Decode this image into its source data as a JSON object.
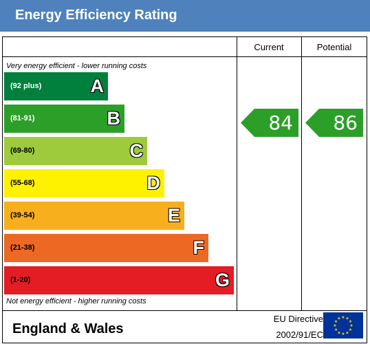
{
  "header": {
    "title": "Energy Efficiency Rating"
  },
  "columns": {
    "current": "Current",
    "potential": "Potential"
  },
  "captions": {
    "top": "Very energy efficient - lower running costs",
    "bottom": "Not energy efficient - higher running costs"
  },
  "chart_data": {
    "type": "bar",
    "title": "Energy Efficiency Rating",
    "bands": [
      {
        "letter": "A",
        "range": "(92 plus)",
        "color": "#007f3d",
        "range_color": "#ffffff"
      },
      {
        "letter": "B",
        "range": "(81-91)",
        "color": "#2c9f29",
        "range_color": "#ffffff"
      },
      {
        "letter": "C",
        "range": "(69-80)",
        "color": "#9dcb3c",
        "range_color": "#000000"
      },
      {
        "letter": "D",
        "range": "(55-68)",
        "color": "#fff200",
        "range_color": "#000000"
      },
      {
        "letter": "E",
        "range": "(39-54)",
        "color": "#f7af1d",
        "range_color": "#000000"
      },
      {
        "letter": "F",
        "range": "(21-38)",
        "color": "#ed6823",
        "range_color": "#000000"
      },
      {
        "letter": "G",
        "range": "(1-20)",
        "color": "#e31d23",
        "range_color": "#000000"
      }
    ],
    "current": {
      "value": 84,
      "band": "B",
      "color": "#2c9f29"
    },
    "potential": {
      "value": 86,
      "band": "B",
      "color": "#2c9f29"
    }
  },
  "footer": {
    "region": "England & Wales",
    "directive_line1": "EU Directive",
    "directive_line2": "2002/91/EC",
    "flag_color": "#003399",
    "star_color": "#ffcc00"
  }
}
